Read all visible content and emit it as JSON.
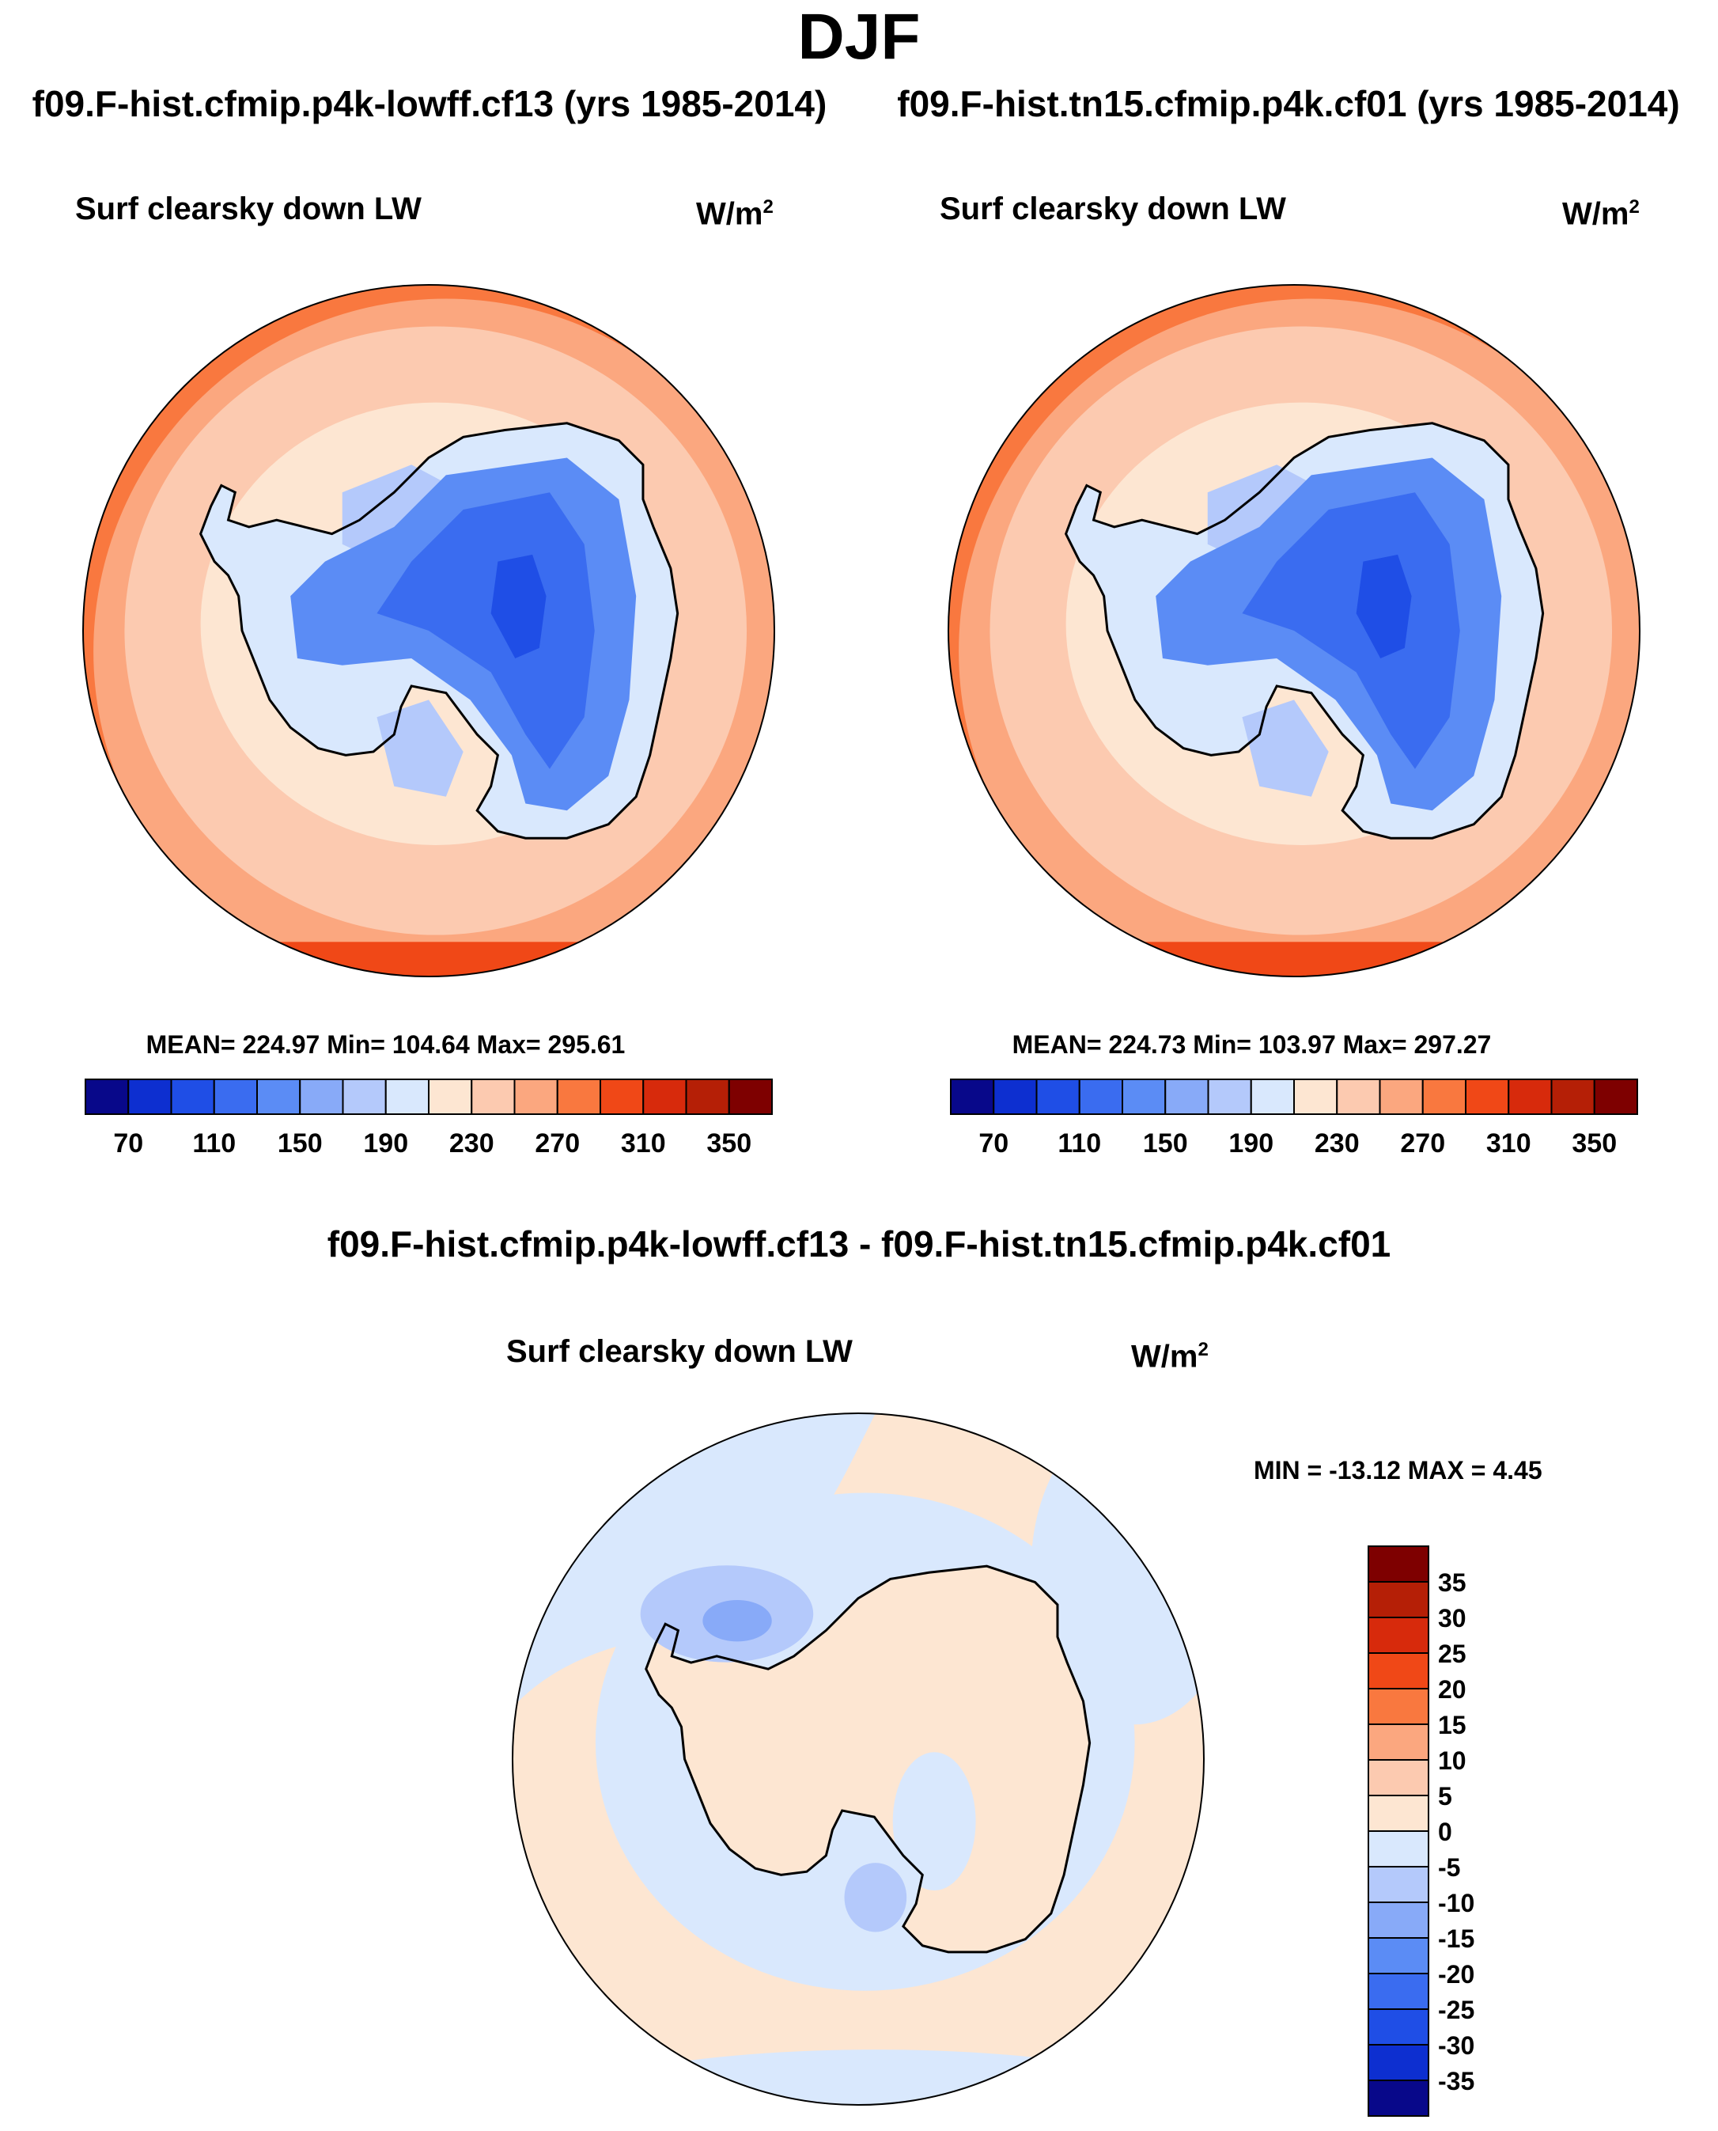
{
  "main_title": "DJF",
  "panels": {
    "left": {
      "case_title": "f09.F-hist.cfmip.p4k-lowff.cf13 (yrs 1985-2014)",
      "var": "Surf clearsky down LW",
      "units": "W/m",
      "units_sup": "2",
      "stats": "MEAN= 224.97  Min= 104.64  Max= 295.61"
    },
    "right": {
      "case_title": "f09.F-hist.tn15.cfmip.p4k.cf01 (yrs 1985-2014)",
      "var": "Surf clearsky down LW",
      "units": "W/m",
      "units_sup": "2",
      "stats": "MEAN= 224.73  Min= 103.97  Max= 297.27"
    },
    "diff": {
      "title": "f09.F-hist.cfmip.p4k-lowff.cf13 - f09.F-hist.tn15.cfmip.p4k.cf01",
      "var": "Surf clearsky down LW",
      "units": "W/m",
      "units_sup": "2",
      "stats": "MIN = -13.12 MAX =   4.45"
    }
  },
  "chart_data": [
    {
      "type": "heatmap",
      "title": "Surf clearsky down LW",
      "projection": "south polar stereographic",
      "units": "W/m2",
      "stats": {
        "mean": 224.97,
        "min": 104.64,
        "max": 295.61
      },
      "colorbar": {
        "orientation": "horizontal",
        "levels": [
          70,
          90,
          110,
          130,
          150,
          170,
          190,
          210,
          230,
          250,
          270,
          290,
          310,
          330,
          350
        ],
        "tick_labels": [
          "70",
          "110",
          "150",
          "190",
          "230",
          "270",
          "310",
          "350"
        ],
        "colors": [
          "#08088a",
          "#0d2fd0",
          "#1f4ee6",
          "#3a6cf0",
          "#5b8cf5",
          "#88aaf8",
          "#b4c9fb",
          "#d9e8fd",
          "#fde6d2",
          "#fccab0",
          "#fba77f",
          "#f9783f",
          "#f04817",
          "#d72a0c",
          "#b51f06",
          "#7e0000"
        ]
      }
    },
    {
      "type": "heatmap",
      "title": "Surf clearsky down LW",
      "projection": "south polar stereographic",
      "units": "W/m2",
      "stats": {
        "mean": 224.73,
        "min": 103.97,
        "max": 297.27
      },
      "colorbar": {
        "orientation": "horizontal",
        "levels": [
          70,
          90,
          110,
          130,
          150,
          170,
          190,
          210,
          230,
          250,
          270,
          290,
          310,
          330,
          350
        ],
        "tick_labels": [
          "70",
          "110",
          "150",
          "190",
          "230",
          "270",
          "310",
          "350"
        ],
        "colors": [
          "#08088a",
          "#0d2fd0",
          "#1f4ee6",
          "#3a6cf0",
          "#5b8cf5",
          "#88aaf8",
          "#b4c9fb",
          "#d9e8fd",
          "#fde6d2",
          "#fccab0",
          "#fba77f",
          "#f9783f",
          "#f04817",
          "#d72a0c",
          "#b51f06",
          "#7e0000"
        ]
      }
    },
    {
      "type": "heatmap",
      "title": "Surf clearsky down LW",
      "projection": "south polar stereographic",
      "units": "W/m2",
      "stats": {
        "min": -13.12,
        "max": 4.45
      },
      "colorbar": {
        "orientation": "vertical",
        "levels": [
          -35,
          -30,
          -25,
          -20,
          -15,
          -10,
          -5,
          0,
          5,
          10,
          15,
          20,
          25,
          30,
          35
        ],
        "tick_labels": [
          "35",
          "30",
          "25",
          "20",
          "15",
          "10",
          "5",
          "0",
          "-5",
          "-10",
          "-15",
          "-20",
          "-25",
          "-30",
          "-35"
        ],
        "colors": [
          "#7e0000",
          "#b51f06",
          "#d72a0c",
          "#f04817",
          "#f9783f",
          "#fba77f",
          "#fccab0",
          "#fde6d2",
          "#d9e8fd",
          "#b4c9fb",
          "#88aaf8",
          "#5b8cf5",
          "#3a6cf0",
          "#1f4ee6",
          "#0d2fd0",
          "#08088a"
        ]
      }
    }
  ]
}
